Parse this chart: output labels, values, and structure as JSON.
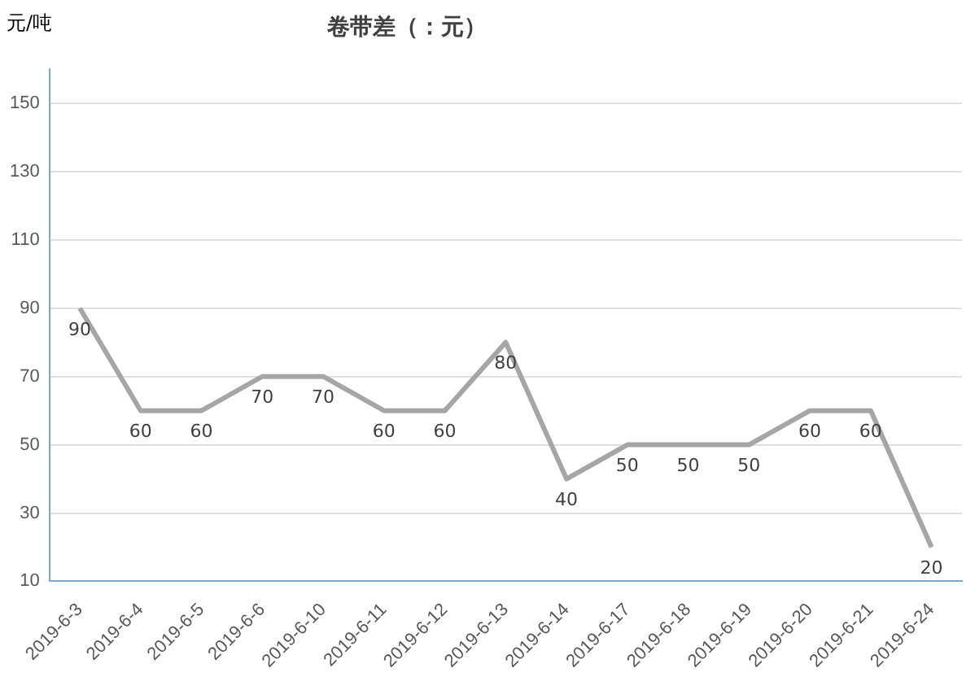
{
  "chart_data": {
    "type": "line",
    "title": "卷带差（：元）",
    "ylabel": "元/吨",
    "categories": [
      "2019-6-3",
      "2019-6-4",
      "2019-6-5",
      "2019-6-6",
      "2019-6-10",
      "2019-6-11",
      "2019-6-12",
      "2019-6-13",
      "2019-6-14",
      "2019-6-17",
      "2019-6-18",
      "2019-6-19",
      "2019-6-20",
      "2019-6-21",
      "2019-6-24"
    ],
    "series": [
      {
        "color": "#a6a6a6",
        "values": [
          90,
          60,
          60,
          70,
          70,
          60,
          60,
          80,
          40,
          50,
          50,
          50,
          60,
          60,
          20
        ]
      }
    ],
    "ylim": [
      10,
      160
    ],
    "yticks": [
      10,
      30,
      50,
      70,
      90,
      110,
      130,
      150
    ],
    "grid": "y",
    "legend": false,
    "marker": "none",
    "line_style": "solid",
    "data_labels": true
  }
}
